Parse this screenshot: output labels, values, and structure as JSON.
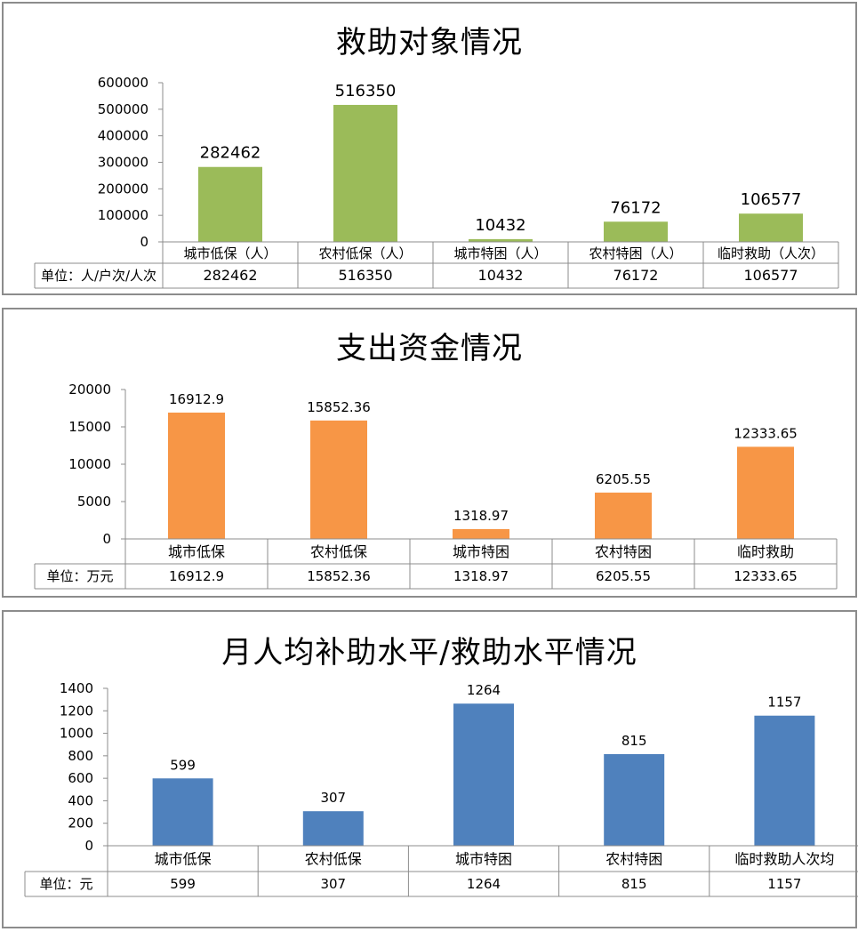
{
  "chart_data": [
    {
      "type": "bar",
      "title": "救助对象情况",
      "categories": [
        "城市低保（人）",
        "农村低保（人）",
        "城市特困（人）",
        "农村特困（人）",
        "临时救助（人次）"
      ],
      "values": [
        282462,
        516350,
        10432,
        76172,
        106577
      ],
      "table_values": [
        "282462",
        "516350",
        "10432",
        "76172",
        "106577"
      ],
      "unit_label": "单位：人/户次/人次",
      "ylim": [
        0,
        600000
      ],
      "yticks": [
        0,
        100000,
        200000,
        300000,
        400000,
        500000,
        600000
      ],
      "color": "#9bbb59",
      "grid": false,
      "legend": "none"
    },
    {
      "type": "bar",
      "title": "支出资金情况",
      "categories": [
        "城市低保",
        "农村低保",
        "城市特困",
        "农村特困",
        "临时救助"
      ],
      "values": [
        16912.9,
        15852.36,
        1318.97,
        6205.55,
        12333.65
      ],
      "table_values": [
        "16912.9",
        "15852.36",
        "1318.97",
        "6205.55",
        "12333.65"
      ],
      "unit_label": "单位：万元",
      "ylim": [
        0,
        20000
      ],
      "yticks": [
        0,
        5000,
        10000,
        15000,
        20000
      ],
      "color": "#f79646",
      "grid": false,
      "legend": "none"
    },
    {
      "type": "bar",
      "title": "月人均补助水平/救助水平情况",
      "categories": [
        "城市低保",
        "农村低保",
        "城市特困",
        "农村特困",
        "临时救助人次均"
      ],
      "values": [
        599,
        307,
        1264,
        815,
        1157
      ],
      "table_values": [
        "599",
        "307",
        "1264",
        "815",
        "1157"
      ],
      "unit_label": "单位：元",
      "ylim": [
        0,
        1400
      ],
      "yticks": [
        0,
        200,
        400,
        600,
        800,
        1000,
        1200,
        1400
      ],
      "color": "#4f81bd",
      "grid": false,
      "legend": "none"
    }
  ]
}
